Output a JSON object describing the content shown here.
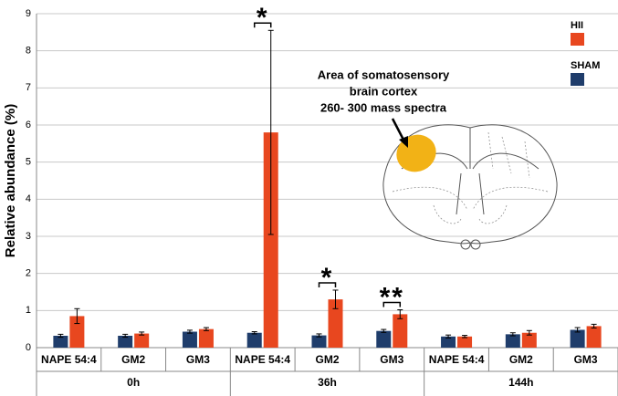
{
  "chart_data": {
    "type": "bar",
    "y_label": "Relative abundance (%)",
    "categories": [
      "NAPE 54:4",
      "GM2",
      "GM3",
      "NAPE 54:4",
      "GM2",
      "GM3",
      "NAPE 54:4",
      "GM2",
      "GM3"
    ],
    "group_labels": [
      "0h",
      "36h",
      "144h"
    ],
    "series": [
      {
        "name": "SHAM",
        "color": "#1f3d6b",
        "values": [
          0.32,
          0.32,
          0.43,
          0.4,
          0.33,
          0.45,
          0.3,
          0.36,
          0.48
        ],
        "errors": [
          0.04,
          0.04,
          0.04,
          0.03,
          0.04,
          0.04,
          0.04,
          0.04,
          0.06
        ]
      },
      {
        "name": "HII",
        "color": "#e8471f",
        "values": [
          0.85,
          0.38,
          0.5,
          5.8,
          1.3,
          0.9,
          0.3,
          0.4,
          0.58
        ],
        "errors": [
          0.2,
          0.04,
          0.04,
          2.75,
          0.25,
          0.12,
          0.03,
          0.06,
          0.05
        ]
      }
    ],
    "annotations": [
      "*",
      "*",
      "**"
    ],
    "inset_text": [
      "Area of somatosensory",
      "brain cortex",
      "260- 300 mass spectra"
    ],
    "ylim": [
      0,
      9
    ],
    "yticks": [
      0,
      1,
      2,
      3,
      4,
      5,
      6,
      7,
      8,
      9
    ],
    "grid": true
  }
}
